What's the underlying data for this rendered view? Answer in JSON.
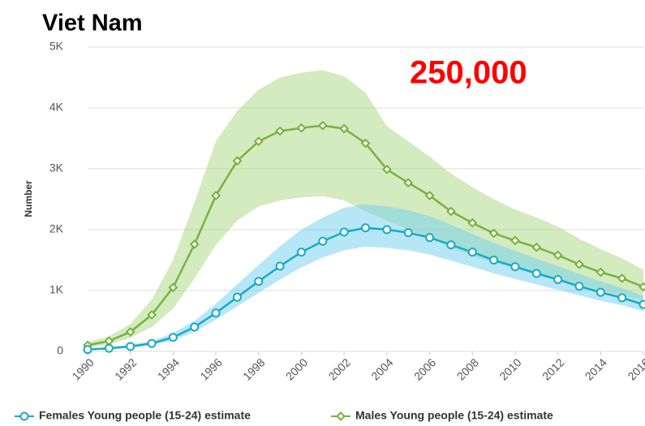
{
  "chart_data": {
    "type": "line",
    "title": "Viet Nam",
    "annotation": "250,000",
    "y_label": "Number",
    "x": [
      1990,
      1991,
      1992,
      1993,
      1994,
      1995,
      1996,
      1997,
      1998,
      1999,
      2000,
      2001,
      2002,
      2003,
      2004,
      2005,
      2006,
      2007,
      2008,
      2009,
      2010,
      2011,
      2012,
      2013,
      2014,
      2015,
      2016
    ],
    "xlim": [
      1990,
      2016
    ],
    "xticks": [
      1990,
      1992,
      1994,
      1996,
      1998,
      2000,
      2002,
      2004,
      2006,
      2008,
      2010,
      2012,
      2014,
      2016
    ],
    "ylim": [
      0,
      5000
    ],
    "yticks": [
      0,
      {
        "value": 1000,
        "label": "1K"
      },
      {
        "value": 2000,
        "label": "2K"
      },
      {
        "value": 3000,
        "label": "3K"
      },
      {
        "value": 4000,
        "label": "4K"
      },
      {
        "value": 5000,
        "label": "5K"
      }
    ],
    "grid": true,
    "legend": "bottom",
    "series": [
      {
        "name": "Males Young people (15-24) estimate",
        "color": "#76b33f",
        "band_color": "#a9d67f",
        "marker": "diamond",
        "values": [
          100,
          170,
          320,
          600,
          1050,
          1760,
          2560,
          3130,
          3450,
          3620,
          3670,
          3710,
          3660,
          3420,
          2990,
          2770,
          2560,
          2300,
          2110,
          1940,
          1820,
          1710,
          1580,
          1430,
          1300,
          1200,
          1060
        ],
        "lower": [
          60,
          110,
          220,
          400,
          700,
          1200,
          1750,
          2150,
          2380,
          2480,
          2530,
          2550,
          2480,
          2300,
          2150,
          2000,
          1870,
          1700,
          1570,
          1460,
          1380,
          1290,
          1200,
          1100,
          1000,
          920,
          830
        ],
        "upper": [
          150,
          250,
          450,
          850,
          1500,
          2450,
          3450,
          3950,
          4300,
          4500,
          4580,
          4620,
          4520,
          4250,
          3700,
          3450,
          3200,
          2920,
          2700,
          2500,
          2330,
          2200,
          2050,
          1850,
          1680,
          1530,
          1340
        ]
      },
      {
        "name": "Females Young people (15-24) estimate",
        "color": "#1aa9c4",
        "band_color": "#6fd0ef",
        "marker": "circle",
        "values": [
          30,
          50,
          80,
          130,
          230,
          400,
          630,
          890,
          1150,
          1400,
          1630,
          1810,
          1960,
          2030,
          2000,
          1950,
          1870,
          1750,
          1630,
          1500,
          1390,
          1280,
          1180,
          1070,
          970,
          880,
          770
        ],
        "lower": [
          20,
          35,
          60,
          100,
          180,
          320,
          520,
          740,
          960,
          1180,
          1380,
          1540,
          1660,
          1720,
          1700,
          1660,
          1590,
          1490,
          1390,
          1280,
          1190,
          1100,
          1010,
          920,
          830,
          760,
          660
        ],
        "upper": [
          45,
          70,
          110,
          170,
          300,
          500,
          780,
          1100,
          1420,
          1730,
          2000,
          2200,
          2360,
          2420,
          2380,
          2320,
          2220,
          2080,
          1930,
          1780,
          1650,
          1520,
          1400,
          1270,
          1150,
          1040,
          910
        ]
      }
    ]
  }
}
